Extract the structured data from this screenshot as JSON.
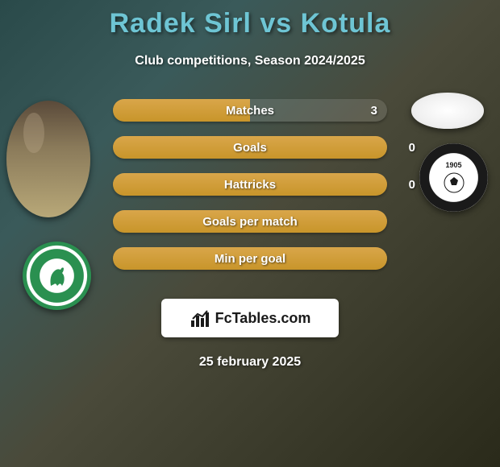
{
  "title": "Radek Sirl vs Kotula",
  "subtitle": "Club competitions, Season 2024/2025",
  "date": "25 february 2025",
  "fctables_label": "FcTables.com",
  "colors": {
    "title": "#6ec5d4",
    "bar": "#d9a64a",
    "text": "#ffffff",
    "club_left_ring": "#2a9050",
    "club_right_ring": "#1a1a1a"
  },
  "bars": [
    {
      "label": "Matches",
      "left": "",
      "right": "3",
      "right_inside": true,
      "left_pct": 50,
      "right_pct": 0
    },
    {
      "label": "Goals",
      "left": "",
      "right": "0",
      "right_inside": false,
      "left_pct": 100,
      "right_pct": 0
    },
    {
      "label": "Hattricks",
      "left": "",
      "right": "0",
      "right_inside": false,
      "left_pct": 100,
      "right_pct": 0
    },
    {
      "label": "Goals per match",
      "left": "",
      "right": "",
      "right_inside": false,
      "left_pct": 100,
      "right_pct": 0
    },
    {
      "label": "Min per goal",
      "left": "",
      "right": "",
      "right_inside": false,
      "left_pct": 100,
      "right_pct": 0
    }
  ],
  "club_right_year": "1905"
}
